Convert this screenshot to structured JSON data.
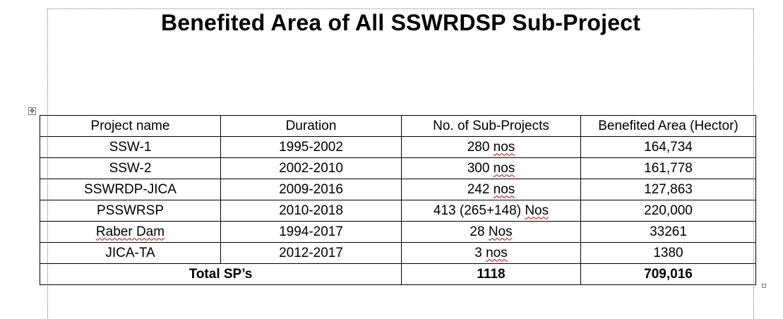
{
  "document": {
    "title": "Benefited Area of All SSWRDSP Sub-Project"
  },
  "table": {
    "headers": [
      "Project name",
      "Duration",
      "No. of  Sub-Projects",
      "Benefited Area (Hector)"
    ],
    "rows": [
      {
        "project": "SSW-1",
        "duration": "1995-2002",
        "count_num": "280",
        "count_unit": "nos",
        "area": "164,734"
      },
      {
        "project": "SSW-2",
        "duration": "2002-2010",
        "count_num": "300",
        "count_unit": "nos",
        "area": "161,778"
      },
      {
        "project": "SSWRDP-JICA",
        "duration": "2009-2016",
        "count_num": "242",
        "count_unit": "nos",
        "area": "127,863"
      },
      {
        "project": "PSSWRSP",
        "duration": "2010-2018",
        "count_num": "413 (265+148)",
        "count_unit": "Nos",
        "area": "220,000"
      },
      {
        "project": "Raber Dam",
        "duration": "1994-2017",
        "count_num": "28",
        "count_unit": "Nos",
        "area": "33261"
      },
      {
        "project": "JICA-TA",
        "duration": "2012-2017",
        "count_num": "3",
        "count_unit": "nos",
        "area": "1380"
      }
    ],
    "total": {
      "label": "Total SP’s",
      "count": "1118",
      "area": "709,016"
    }
  },
  "icons": {
    "move_handle": "table-move-handle-icon",
    "resize_handle": "table-resize-handle-icon"
  }
}
